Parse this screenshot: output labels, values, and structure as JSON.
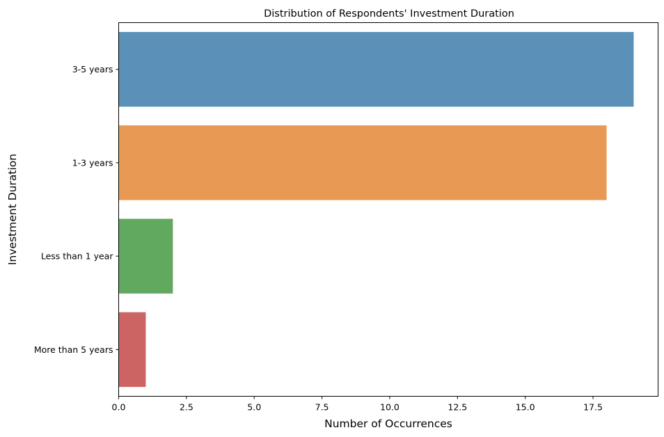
{
  "chart_data": {
    "type": "bar",
    "orientation": "horizontal",
    "title": "Distribution of Respondents' Investment Duration",
    "xlabel": "Number of Occurrences",
    "ylabel": "Investment Duration",
    "categories": [
      "3-5 years",
      "1-3 years",
      "Less than 1 year",
      "More than 5 years"
    ],
    "values": [
      19,
      18,
      2,
      1
    ],
    "colors": [
      "#5b91b8",
      "#e89a55",
      "#62a960",
      "#cc6464"
    ],
    "xlim": [
      0,
      19.9
    ],
    "xticks": [
      0.0,
      2.5,
      5.0,
      7.5,
      10.0,
      12.5,
      15.0,
      17.5
    ],
    "xtick_labels": [
      "0.0",
      "2.5",
      "5.0",
      "7.5",
      "10.0",
      "12.5",
      "15.0",
      "17.5"
    ],
    "grid": false,
    "legend": "none"
  }
}
